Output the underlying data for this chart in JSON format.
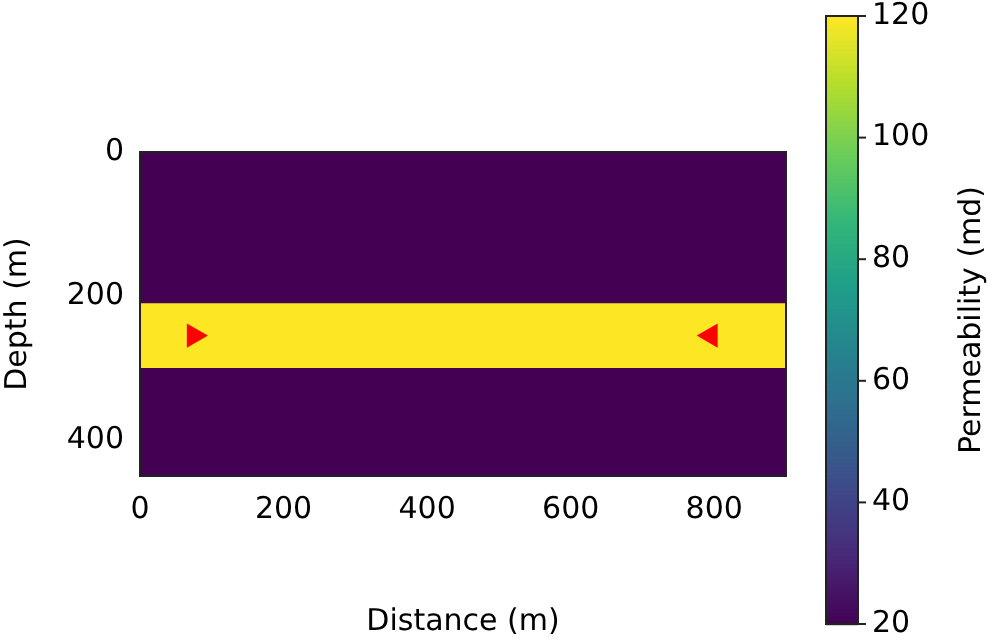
{
  "chart_data": {
    "type": "heatmap",
    "xlabel": "Distance (m)",
    "ylabel": "Depth (m)",
    "clabel": "Permeability (md)",
    "xlim": [
      0,
      900
    ],
    "xticks": [
      0,
      200,
      400,
      600,
      800
    ],
    "ylim": [
      450,
      0
    ],
    "yticks": [
      0,
      200,
      400
    ],
    "cells": [
      [
        20
      ],
      [
        20
      ],
      [
        20
      ],
      [
        20
      ],
      [
        20
      ],
      [
        20
      ],
      [
        20
      ],
      [
        120
      ],
      [
        120
      ],
      [
        120
      ],
      [
        20
      ],
      [
        20
      ],
      [
        20
      ],
      [
        20
      ],
      [
        20
      ]
    ],
    "clim": [
      20,
      120
    ],
    "cticks": [
      20,
      40,
      60,
      80,
      100,
      120
    ],
    "grid": false,
    "series": [
      {
        "type": "scatter",
        "color": "#ff0000",
        "marker": "triangle",
        "x": [
          75,
          795
        ],
        "values": [
          255,
          255
        ]
      }
    ]
  }
}
